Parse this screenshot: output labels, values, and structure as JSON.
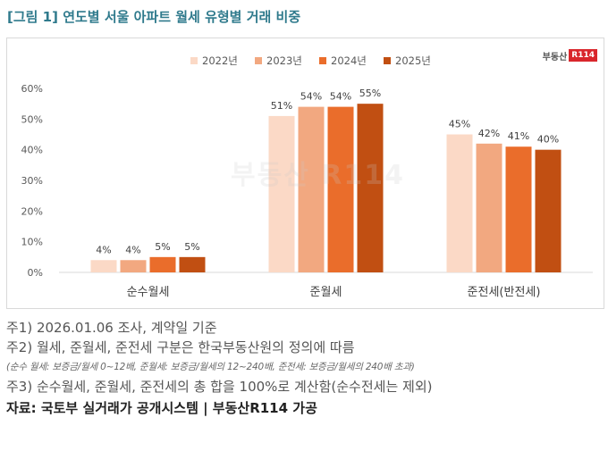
{
  "title": "[그림 1] 연도별 서울 아파트 월세 유형별 거래 비중",
  "logo": {
    "text": "부동산",
    "badge": "R114"
  },
  "watermark": "부동산 R114",
  "chart_data": {
    "type": "bar",
    "categories": [
      "순수월세",
      "준월세",
      "준전세(반전세)"
    ],
    "series": [
      {
        "name": "2022년",
        "values": [
          4,
          51,
          45
        ],
        "color": "#fbd9c6"
      },
      {
        "name": "2023년",
        "values": [
          4,
          54,
          42
        ],
        "color": "#f2a880"
      },
      {
        "name": "2024년",
        "values": [
          5,
          54,
          41
        ],
        "color": "#ea6d2b"
      },
      {
        "name": "2025년",
        "values": [
          5,
          55,
          40
        ],
        "color": "#c14f12"
      }
    ],
    "data_labels": [
      [
        "4%",
        "51%",
        "45%"
      ],
      [
        "4%",
        "54%",
        "42%"
      ],
      [
        "5%",
        "54%",
        "41%"
      ],
      [
        "5%",
        "55%",
        "40%"
      ]
    ],
    "yticks": [
      0,
      10,
      20,
      30,
      40,
      50,
      60
    ],
    "ytick_labels": [
      "0%",
      "10%",
      "20%",
      "30%",
      "40%",
      "50%",
      "60%"
    ],
    "ylim": [
      0,
      60
    ],
    "title": "",
    "xlabel": "",
    "ylabel": "",
    "grid": false,
    "legend": "top-center"
  },
  "notes": {
    "n1": "주1) 2026.01.06 조사, 계약일 기준",
    "n2": "주2) 월세, 준월세, 준전세 구분은 한국부동산원의 정의에 따름",
    "n2_sub": "(순수 월세: 보증금/월세 0~12배, 준월세: 보증금/월세의 12~240배, 준전세: 보증금/월세의 240배 초과)",
    "n3": "주3) 순수월세, 준월세, 준전세의 총 합을 100%로 계산함(순수전세는 제외)",
    "source": "자료: 국토부 실거래가 공개시스템 | 부동산R114 가공"
  }
}
